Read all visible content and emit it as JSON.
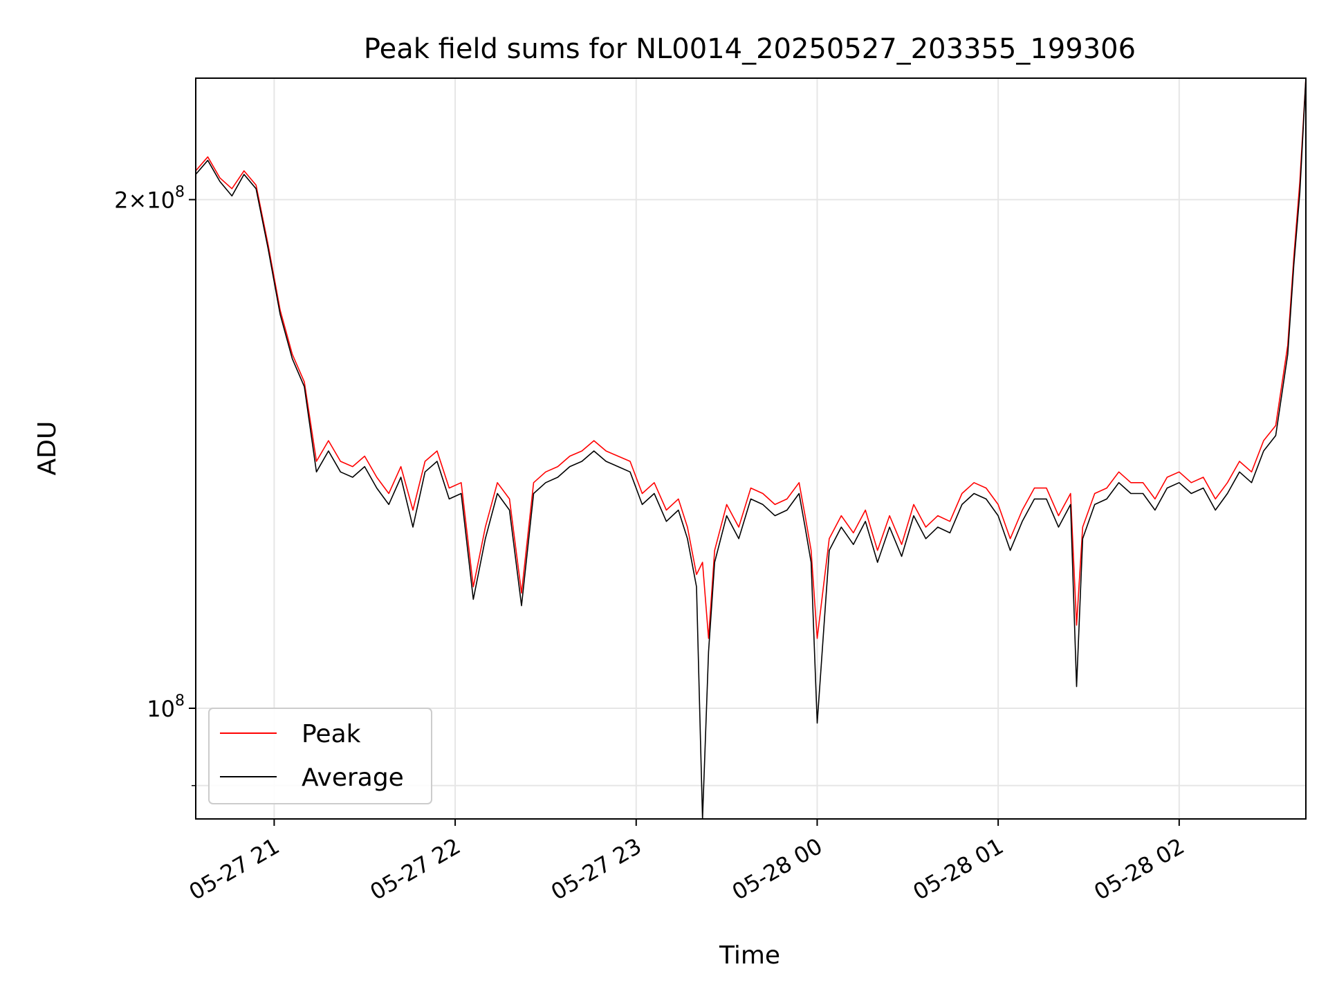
{
  "chart_data": {
    "type": "line",
    "title": "Peak field sums for NL0014_20250527_203355_199306",
    "xlabel": "Time",
    "ylabel": "ADU",
    "y_scale": "log",
    "xlim": [
      "2025-05-27 20:34",
      "2025-05-28 02:42"
    ],
    "ylim": [
      86000000,
      236000000
    ],
    "grid": true,
    "legend_position": "lower-left",
    "x_ticks": [
      "05-27 21",
      "05-27 22",
      "05-27 23",
      "05-28 00",
      "05-28 01",
      "05-28 02"
    ],
    "y_ticks": [
      {
        "value": 100000000,
        "base": "10",
        "exp": "8",
        "coef": ""
      },
      {
        "value": 200000000,
        "base": "10",
        "exp": "8",
        "coef": "2×"
      }
    ],
    "series": [
      {
        "name": "Peak",
        "color": "#ff0000",
        "x": [
          "2025-05-27 20:34",
          "2025-05-27 20:38",
          "2025-05-27 20:42",
          "2025-05-27 20:46",
          "2025-05-27 20:50",
          "2025-05-27 20:54",
          "2025-05-27 20:58",
          "2025-05-27 21:02",
          "2025-05-27 21:06",
          "2025-05-27 21:10",
          "2025-05-27 21:14",
          "2025-05-27 21:18",
          "2025-05-27 21:22",
          "2025-05-27 21:26",
          "2025-05-27 21:30",
          "2025-05-27 21:34",
          "2025-05-27 21:38",
          "2025-05-27 21:42",
          "2025-05-27 21:46",
          "2025-05-27 21:50",
          "2025-05-27 21:54",
          "2025-05-27 21:58",
          "2025-05-27 22:02",
          "2025-05-27 22:06",
          "2025-05-27 22:10",
          "2025-05-27 22:14",
          "2025-05-27 22:18",
          "2025-05-27 22:22",
          "2025-05-27 22:26",
          "2025-05-27 22:30",
          "2025-05-27 22:34",
          "2025-05-27 22:38",
          "2025-05-27 22:42",
          "2025-05-27 22:46",
          "2025-05-27 22:50",
          "2025-05-27 22:54",
          "2025-05-27 22:58",
          "2025-05-27 23:02",
          "2025-05-27 23:06",
          "2025-05-27 23:10",
          "2025-05-27 23:14",
          "2025-05-27 23:17",
          "2025-05-27 23:20",
          "2025-05-27 23:22",
          "2025-05-27 23:24",
          "2025-05-27 23:26",
          "2025-05-27 23:30",
          "2025-05-27 23:34",
          "2025-05-27 23:38",
          "2025-05-27 23:42",
          "2025-05-27 23:46",
          "2025-05-27 23:50",
          "2025-05-27 23:54",
          "2025-05-27 23:56",
          "2025-05-27 23:58",
          "2025-05-28 00:00",
          "2025-05-28 00:04",
          "2025-05-28 00:08",
          "2025-05-28 00:12",
          "2025-05-28 00:16",
          "2025-05-28 00:20",
          "2025-05-28 00:24",
          "2025-05-28 00:28",
          "2025-05-28 00:32",
          "2025-05-28 00:36",
          "2025-05-28 00:40",
          "2025-05-28 00:44",
          "2025-05-28 00:48",
          "2025-05-28 00:52",
          "2025-05-28 00:56",
          "2025-05-28 01:00",
          "2025-05-28 01:04",
          "2025-05-28 01:08",
          "2025-05-28 01:12",
          "2025-05-28 01:16",
          "2025-05-28 01:20",
          "2025-05-28 01:24",
          "2025-05-28 01:26",
          "2025-05-28 01:28",
          "2025-05-28 01:32",
          "2025-05-28 01:36",
          "2025-05-28 01:40",
          "2025-05-28 01:44",
          "2025-05-28 01:48",
          "2025-05-28 01:52",
          "2025-05-28 01:56",
          "2025-05-28 02:00",
          "2025-05-28 02:04",
          "2025-05-28 02:08",
          "2025-05-28 02:12",
          "2025-05-28 02:16",
          "2025-05-28 02:20",
          "2025-05-28 02:24",
          "2025-05-28 02:28",
          "2025-05-28 02:32",
          "2025-05-28 02:36",
          "2025-05-28 02:38",
          "2025-05-28 02:40",
          "2025-05-28 02:42"
        ],
        "values": [
          208000000,
          212000000,
          206000000,
          203000000,
          208000000,
          204000000,
          188000000,
          172000000,
          162000000,
          156000000,
          140000000,
          144000000,
          140000000,
          139000000,
          141000000,
          137000000,
          134000000,
          139000000,
          131000000,
          140000000,
          142000000,
          135000000,
          136000000,
          118000000,
          128000000,
          136000000,
          133000000,
          117000000,
          136000000,
          138000000,
          139000000,
          141000000,
          142000000,
          144000000,
          142000000,
          141000000,
          140000000,
          134000000,
          136000000,
          131000000,
          133000000,
          128000000,
          120000000,
          122000000,
          110000000,
          124000000,
          132000000,
          128000000,
          135000000,
          134000000,
          132000000,
          133000000,
          136000000,
          130000000,
          124000000,
          110000000,
          126000000,
          130000000,
          127000000,
          131000000,
          124000000,
          130000000,
          125000000,
          132000000,
          128000000,
          130000000,
          129000000,
          134000000,
          136000000,
          135000000,
          132000000,
          126000000,
          131000000,
          135000000,
          135000000,
          130000000,
          134000000,
          112000000,
          128000000,
          134000000,
          135000000,
          138000000,
          136000000,
          136000000,
          133000000,
          137000000,
          138000000,
          136000000,
          137000000,
          133000000,
          136000000,
          140000000,
          138000000,
          144000000,
          147000000,
          164000000,
          185000000,
          205000000,
          236000000
        ]
      },
      {
        "name": "Average",
        "color": "#000000",
        "x": [
          "2025-05-27 20:34",
          "2025-05-27 20:38",
          "2025-05-27 20:42",
          "2025-05-27 20:46",
          "2025-05-27 20:50",
          "2025-05-27 20:54",
          "2025-05-27 20:58",
          "2025-05-27 21:02",
          "2025-05-27 21:06",
          "2025-05-27 21:10",
          "2025-05-27 21:14",
          "2025-05-27 21:18",
          "2025-05-27 21:22",
          "2025-05-27 21:26",
          "2025-05-27 21:30",
          "2025-05-27 21:34",
          "2025-05-27 21:38",
          "2025-05-27 21:42",
          "2025-05-27 21:46",
          "2025-05-27 21:50",
          "2025-05-27 21:54",
          "2025-05-27 21:58",
          "2025-05-27 22:02",
          "2025-05-27 22:06",
          "2025-05-27 22:10",
          "2025-05-27 22:14",
          "2025-05-27 22:18",
          "2025-05-27 22:22",
          "2025-05-27 22:26",
          "2025-05-27 22:30",
          "2025-05-27 22:34",
          "2025-05-27 22:38",
          "2025-05-27 22:42",
          "2025-05-27 22:46",
          "2025-05-27 22:50",
          "2025-05-27 22:54",
          "2025-05-27 22:58",
          "2025-05-27 23:02",
          "2025-05-27 23:06",
          "2025-05-27 23:10",
          "2025-05-27 23:14",
          "2025-05-27 23:17",
          "2025-05-27 23:20",
          "2025-05-27 23:22",
          "2025-05-27 23:24",
          "2025-05-27 23:26",
          "2025-05-27 23:30",
          "2025-05-27 23:34",
          "2025-05-27 23:38",
          "2025-05-27 23:42",
          "2025-05-27 23:46",
          "2025-05-27 23:50",
          "2025-05-27 23:54",
          "2025-05-27 23:56",
          "2025-05-27 23:58",
          "2025-05-28 00:00",
          "2025-05-28 00:04",
          "2025-05-28 00:08",
          "2025-05-28 00:12",
          "2025-05-28 00:16",
          "2025-05-28 00:20",
          "2025-05-28 00:24",
          "2025-05-28 00:28",
          "2025-05-28 00:32",
          "2025-05-28 00:36",
          "2025-05-28 00:40",
          "2025-05-28 00:44",
          "2025-05-28 00:48",
          "2025-05-28 00:52",
          "2025-05-28 00:56",
          "2025-05-28 01:00",
          "2025-05-28 01:04",
          "2025-05-28 01:08",
          "2025-05-28 01:12",
          "2025-05-28 01:16",
          "2025-05-28 01:20",
          "2025-05-28 01:24",
          "2025-05-28 01:26",
          "2025-05-28 01:28",
          "2025-05-28 01:32",
          "2025-05-28 01:36",
          "2025-05-28 01:40",
          "2025-05-28 01:44",
          "2025-05-28 01:48",
          "2025-05-28 01:52",
          "2025-05-28 01:56",
          "2025-05-28 02:00",
          "2025-05-28 02:04",
          "2025-05-28 02:08",
          "2025-05-28 02:12",
          "2025-05-28 02:16",
          "2025-05-28 02:20",
          "2025-05-28 02:24",
          "2025-05-28 02:28",
          "2025-05-28 02:32",
          "2025-05-28 02:36",
          "2025-05-28 02:38",
          "2025-05-28 02:40",
          "2025-05-28 02:42"
        ],
        "values": [
          207000000,
          211000000,
          205000000,
          201000000,
          207000000,
          203000000,
          187000000,
          171000000,
          161000000,
          155000000,
          138000000,
          142000000,
          138000000,
          137000000,
          139000000,
          135000000,
          132000000,
          137000000,
          128000000,
          138000000,
          140000000,
          133000000,
          134000000,
          116000000,
          126000000,
          134000000,
          131000000,
          115000000,
          134000000,
          136000000,
          137000000,
          139000000,
          140000000,
          142000000,
          140000000,
          139000000,
          138000000,
          132000000,
          134000000,
          129000000,
          131000000,
          126000000,
          118000000,
          86000000,
          108000000,
          122000000,
          130000000,
          126000000,
          133000000,
          132000000,
          130000000,
          131000000,
          134000000,
          128000000,
          122000000,
          98000000,
          124000000,
          128000000,
          125000000,
          129000000,
          122000000,
          128000000,
          123000000,
          130000000,
          126000000,
          128000000,
          127000000,
          132000000,
          134000000,
          133000000,
          130000000,
          124000000,
          129000000,
          133000000,
          133000000,
          128000000,
          132000000,
          103000000,
          126000000,
          132000000,
          133000000,
          136000000,
          134000000,
          134000000,
          131000000,
          135000000,
          136000000,
          134000000,
          135000000,
          131000000,
          134000000,
          138000000,
          136000000,
          142000000,
          145000000,
          162000000,
          183000000,
          202000000,
          236000000
        ]
      }
    ]
  }
}
